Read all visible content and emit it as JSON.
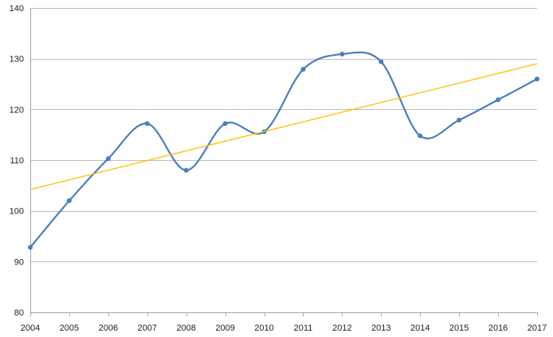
{
  "chart_data": {
    "type": "line",
    "title": "",
    "xlabel": "",
    "ylabel": "",
    "x": [
      2004,
      2005,
      2006,
      2007,
      2008,
      2009,
      2010,
      2011,
      2012,
      2013,
      2014,
      2015,
      2016,
      2017
    ],
    "x_tick_labels": [
      "2004",
      "2005",
      "2006",
      "2007",
      "2008",
      "2009",
      "2010",
      "2011",
      "2012",
      "2013",
      "2014",
      "2015",
      "2016",
      "2017"
    ],
    "ylim": [
      80,
      140
    ],
    "y_ticks": [
      80,
      90,
      100,
      110,
      120,
      130,
      140
    ],
    "y_tick_labels": [
      "80",
      "90",
      "100",
      "110",
      "120",
      "130",
      "140"
    ],
    "grid": "horizontal",
    "legend": "none",
    "series": [
      {
        "values": [
          92.8,
          102.0,
          110.3,
          117.2,
          108.0,
          117.2,
          115.6,
          127.9,
          130.9,
          129.4,
          114.8,
          117.9,
          121.9,
          126.0
        ],
        "color": "#4a7ebb",
        "smooth": true,
        "markers": true
      },
      {
        "trendline": "linear",
        "values": [
          104.2,
          129.0
        ],
        "x": [
          2004,
          2017
        ],
        "color": "#ffc000"
      }
    ]
  }
}
